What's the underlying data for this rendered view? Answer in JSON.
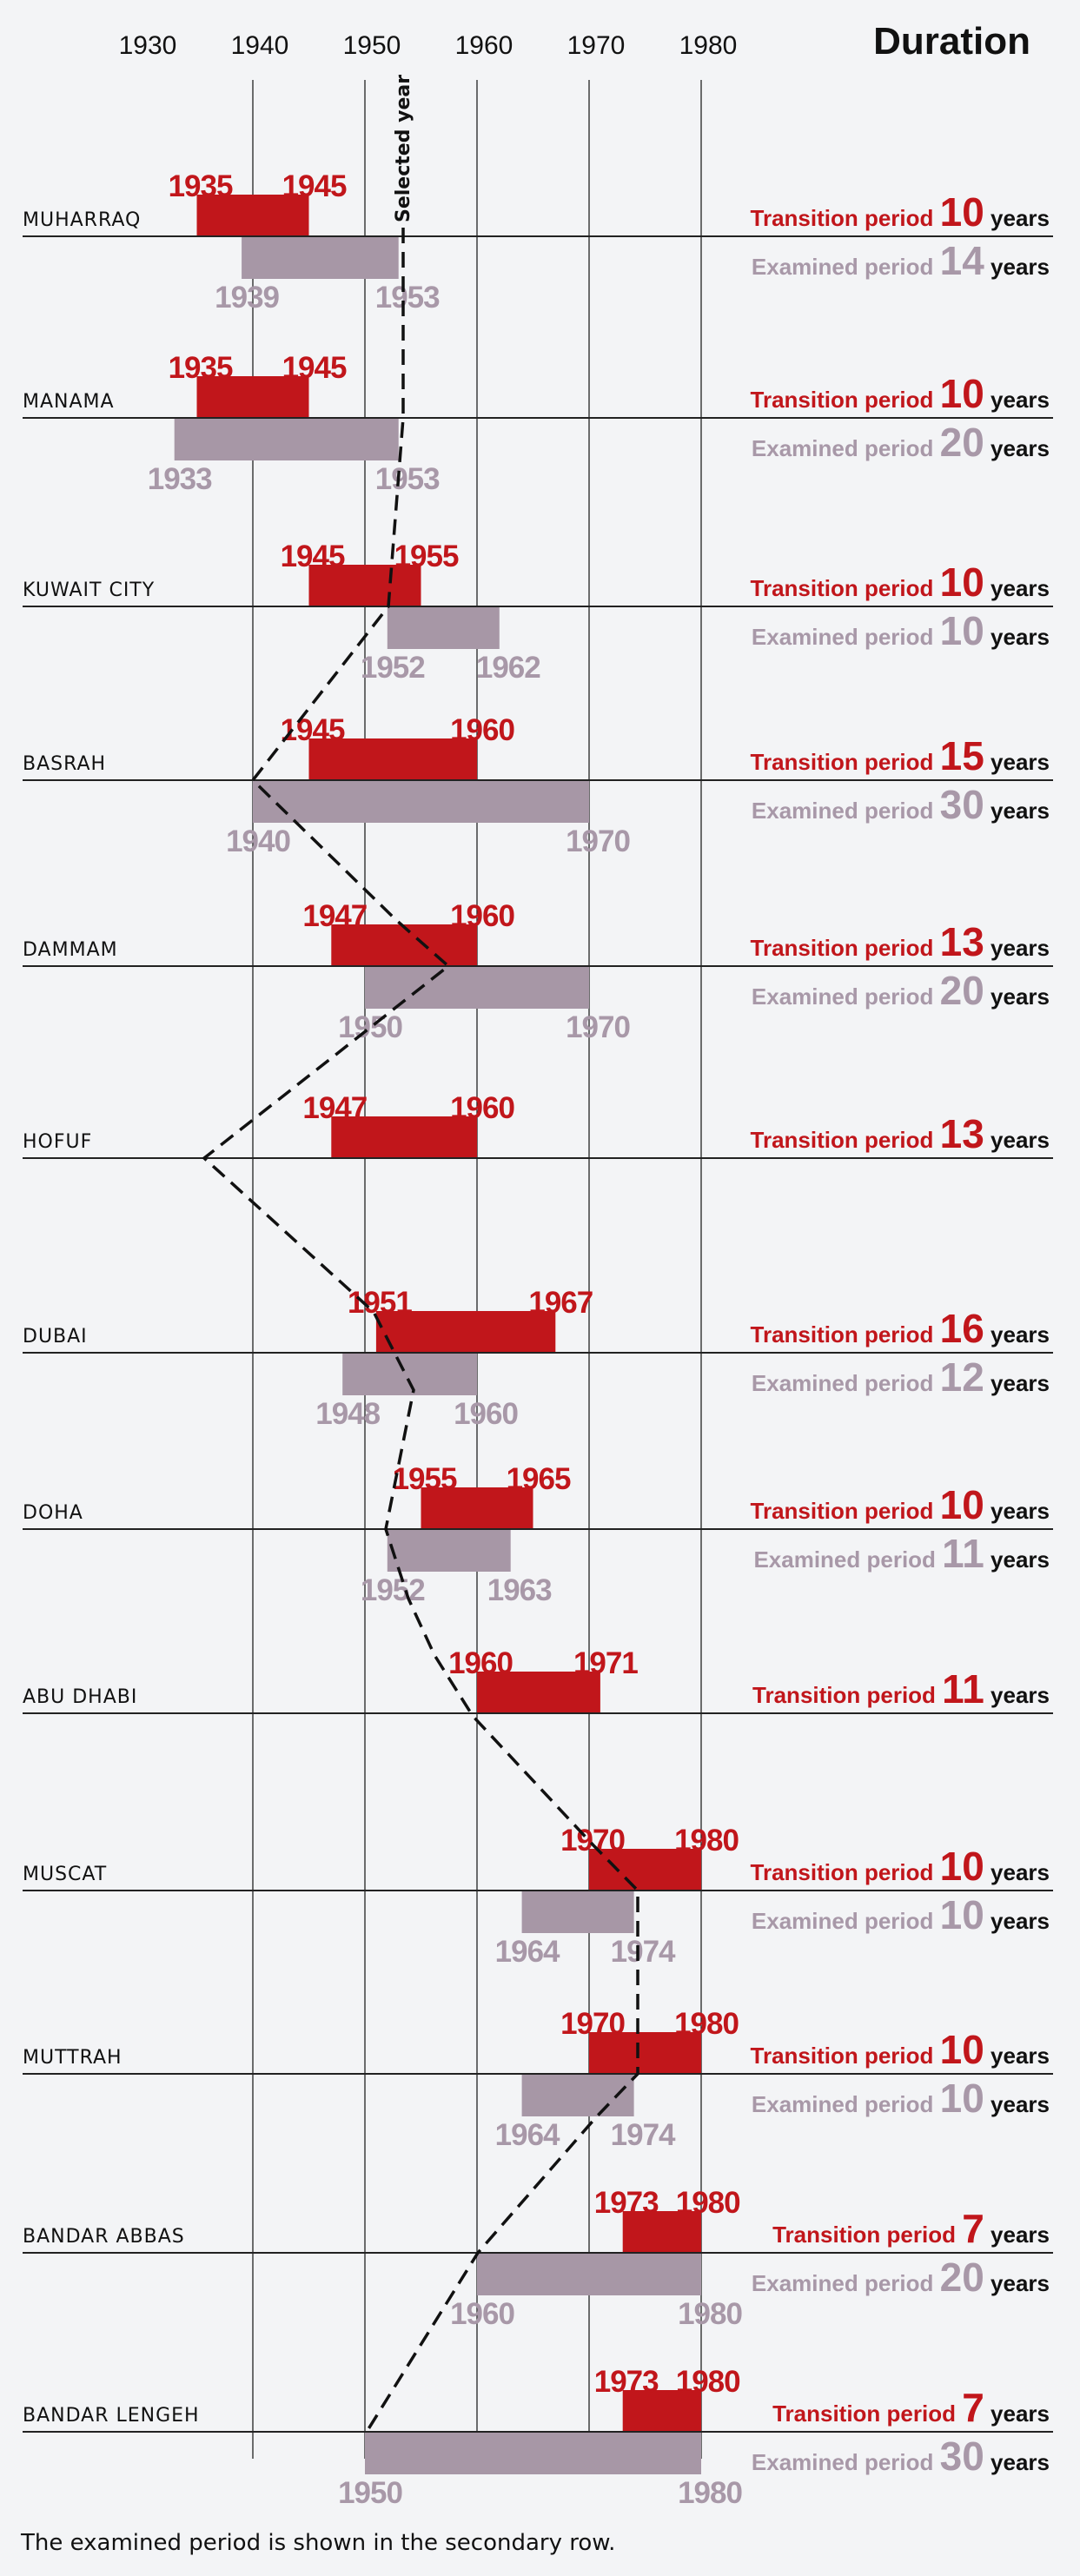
{
  "colors": {
    "transition": "#c1161b",
    "examined": "#a797a6",
    "examined_text": "#a898a8",
    "background": "#f3f4f6"
  },
  "chart_data": {
    "type": "bar",
    "subtype": "range-timeline",
    "title": "Duration",
    "x_ticks": [
      1930,
      1940,
      1950,
      1960,
      1970,
      1980
    ],
    "x_tick_labels": [
      "1930",
      "1940",
      "1950",
      "1960",
      "1970",
      "1980"
    ],
    "xlim": [
      1930,
      1980
    ],
    "grid": true,
    "selected_year_label": "Selected year",
    "transition_label": "Transition period",
    "examined_label": "Examined period",
    "years_label": "years",
    "footnote": "The examined period is shown in the secondary row.",
    "rows": [
      {
        "city": "MUHARRAQ",
        "transition": [
          1935,
          1945
        ],
        "transition_years": 10,
        "examined": [
          1939,
          1953
        ],
        "examined_years": 14,
        "selected_year": 1953
      },
      {
        "city": "MANAMA",
        "transition": [
          1935,
          1945
        ],
        "transition_years": 10,
        "examined": [
          1933,
          1953
        ],
        "examined_years": 20,
        "selected_year": 1953
      },
      {
        "city": "KUWAIT CITY",
        "transition": [
          1945,
          1955
        ],
        "transition_years": 10,
        "examined": [
          1952,
          1962
        ],
        "examined_years": 10,
        "selected_year": 1952
      },
      {
        "city": "BASRAH",
        "transition": [
          1945,
          1960
        ],
        "transition_years": 15,
        "examined": [
          1940,
          1970
        ],
        "examined_years": 30,
        "selected_year": 1940
      },
      {
        "city": "DAMMAM",
        "transition": [
          1947,
          1960
        ],
        "transition_years": 13,
        "examined": [
          1950,
          1970
        ],
        "examined_years": 20,
        "selected_year": 1957
      },
      {
        "city": "HOFUF",
        "transition": [
          1947,
          1960
        ],
        "transition_years": 13,
        "examined": null,
        "examined_years": null,
        "selected_year": 1935
      },
      {
        "city": "DUBAI",
        "transition": [
          1951,
          1967
        ],
        "transition_years": 16,
        "examined": [
          1948,
          1960
        ],
        "examined_years": 12,
        "selected_year": 1954
      },
      {
        "city": "DOHA",
        "transition": [
          1955,
          1965
        ],
        "transition_years": 10,
        "examined": [
          1952,
          1963
        ],
        "examined_years": 11,
        "selected_year": 1952
      },
      {
        "city": "ABU DHABI",
        "transition": [
          1960,
          1971
        ],
        "transition_years": 11,
        "examined": null,
        "examined_years": null,
        "selected_year": 1959
      },
      {
        "city": "MUSCAT",
        "transition": [
          1970,
          1980
        ],
        "transition_years": 10,
        "examined": [
          1964,
          1974
        ],
        "examined_years": 10,
        "selected_year": 1974
      },
      {
        "city": "MUTTRAH",
        "transition": [
          1970,
          1980
        ],
        "transition_years": 10,
        "examined": [
          1964,
          1974
        ],
        "examined_years": 10,
        "selected_year": 1974
      },
      {
        "city": "BANDAR ABBAS",
        "transition": [
          1973,
          1980
        ],
        "transition_years": 7,
        "examined": [
          1960,
          1980
        ],
        "examined_years": 20,
        "selected_year": 1960
      },
      {
        "city": "BANDAR LENGEH",
        "transition": [
          1973,
          1980
        ],
        "transition_years": 7,
        "examined": [
          1950,
          1980
        ],
        "examined_years": 30,
        "selected_year": 1950
      }
    ]
  }
}
